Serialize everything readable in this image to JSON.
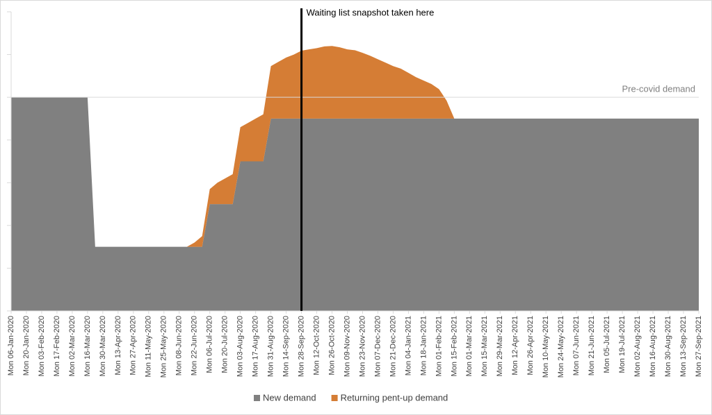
{
  "chart_data": {
    "type": "stacked-area",
    "categories": [
      "Mon 06-Jan-2020",
      null,
      "Mon 20-Jan-2020",
      null,
      "Mon 03-Feb-2020",
      null,
      "Mon 17-Feb-2020",
      null,
      "Mon 02-Mar-2020",
      null,
      "Mon 16-Mar-2020",
      null,
      "Mon 30-Mar-2020",
      null,
      "Mon 13-Apr-2020",
      null,
      "Mon 27-Apr-2020",
      null,
      "Mon 11-May-2020",
      null,
      "Mon 25-May-2020",
      null,
      "Mon 08-Jun-2020",
      null,
      "Mon 22-Jun-2020",
      null,
      "Mon 06-Jul-2020",
      null,
      "Mon 20-Jul-2020",
      null,
      "Mon 03-Aug-2020",
      null,
      "Mon 17-Aug-2020",
      null,
      "Mon 31-Aug-2020",
      null,
      "Mon 14-Sep-2020",
      null,
      "Mon 28-Sep-2020",
      null,
      "Mon 12-Oct-2020",
      null,
      "Mon 26-Oct-2020",
      null,
      "Mon 09-Nov-2020",
      null,
      "Mon 23-Nov-2020",
      null,
      "Mon 07-Dec-2020",
      null,
      "Mon 21-Dec-2020",
      null,
      "Mon 04-Jan-2021",
      null,
      "Mon 18-Jan-2021",
      null,
      "Mon 01-Feb-2021",
      null,
      "Mon 15-Feb-2021",
      null,
      "Mon 01-Mar-2021",
      null,
      "Mon 15-Mar-2021",
      null,
      "Mon 29-Mar-2021",
      null,
      "Mon 12-Apr-2021",
      null,
      "Mon 26-Apr-2021",
      null,
      "Mon 10-May-2021",
      null,
      "Mon 24-May-2021",
      null,
      "Mon 07-Jun-2021",
      null,
      "Mon 21-Jun-2021",
      null,
      "Mon 05-Jul-2021",
      null,
      "Mon 19-Jul-2021",
      null,
      "Mon 02-Aug-2021",
      null,
      "Mon 16-Aug-2021",
      null,
      "Mon 30-Aug-2021",
      null,
      "Mon 13-Sep-2021",
      null,
      "Mon 27-Sep-2021"
    ],
    "series": [
      {
        "name": "New demand",
        "color": "#808080",
        "values": [
          5,
          5,
          5,
          5,
          5,
          5,
          5,
          5,
          5,
          5,
          5,
          1.5,
          1.5,
          1.5,
          1.5,
          1.5,
          1.5,
          1.5,
          1.5,
          1.5,
          1.5,
          1.5,
          1.5,
          1.5,
          1.5,
          1.5,
          2.5,
          2.5,
          2.5,
          2.5,
          3.5,
          3.5,
          3.5,
          3.5,
          4.5,
          4.5,
          4.5,
          4.5,
          4.5,
          4.5,
          4.5,
          4.5,
          4.5,
          4.5,
          4.5,
          4.5,
          4.5,
          4.5,
          4.5,
          4.5,
          4.5,
          4.5,
          4.5,
          4.5,
          4.5,
          4.5,
          4.5,
          4.5,
          4.5,
          4.5,
          4.5,
          4.5,
          4.5,
          4.5,
          4.5,
          4.5,
          4.5,
          4.5,
          4.5,
          4.5,
          4.5,
          4.5,
          4.5,
          4.5,
          4.5,
          4.5,
          4.5,
          4.5,
          4.5,
          4.5,
          4.5,
          4.5,
          4.5,
          4.5,
          4.5,
          4.5,
          4.5,
          4.5,
          4.5,
          4.5,
          4.5
        ]
      },
      {
        "name": "Returning pent-up demand",
        "color": "#d57d35",
        "values": [
          0,
          0,
          0,
          0,
          0,
          0,
          0,
          0,
          0,
          0,
          0,
          0,
          0,
          0,
          0,
          0,
          0,
          0,
          0,
          0,
          0,
          0,
          0,
          0,
          0.1,
          0.25,
          0.35,
          0.5,
          0.6,
          0.7,
          0.8,
          0.9,
          1.0,
          1.1,
          1.23,
          1.33,
          1.43,
          1.5,
          1.59,
          1.62,
          1.65,
          1.69,
          1.7,
          1.67,
          1.62,
          1.6,
          1.54,
          1.47,
          1.39,
          1.31,
          1.23,
          1.17,
          1.07,
          0.97,
          0.89,
          0.81,
          0.69,
          0.42,
          0,
          0,
          0,
          0,
          0,
          0,
          0,
          0,
          0,
          0,
          0,
          0,
          0,
          0,
          0,
          0,
          0,
          0,
          0,
          0,
          0,
          0,
          0,
          0,
          0,
          0,
          0,
          0,
          0,
          0,
          0,
          0,
          0
        ]
      }
    ],
    "ylim": [
      0,
      7
    ],
    "yticks": [
      0,
      1,
      2,
      3,
      4,
      5,
      6,
      7
    ],
    "reference": {
      "label": "Pre-covid demand",
      "value": 5,
      "color": "#d9d9d9"
    },
    "annotation": {
      "text": "Waiting list snapshot taken here",
      "x": "Mon 28-Sep-2020"
    },
    "legend": "bottom"
  }
}
